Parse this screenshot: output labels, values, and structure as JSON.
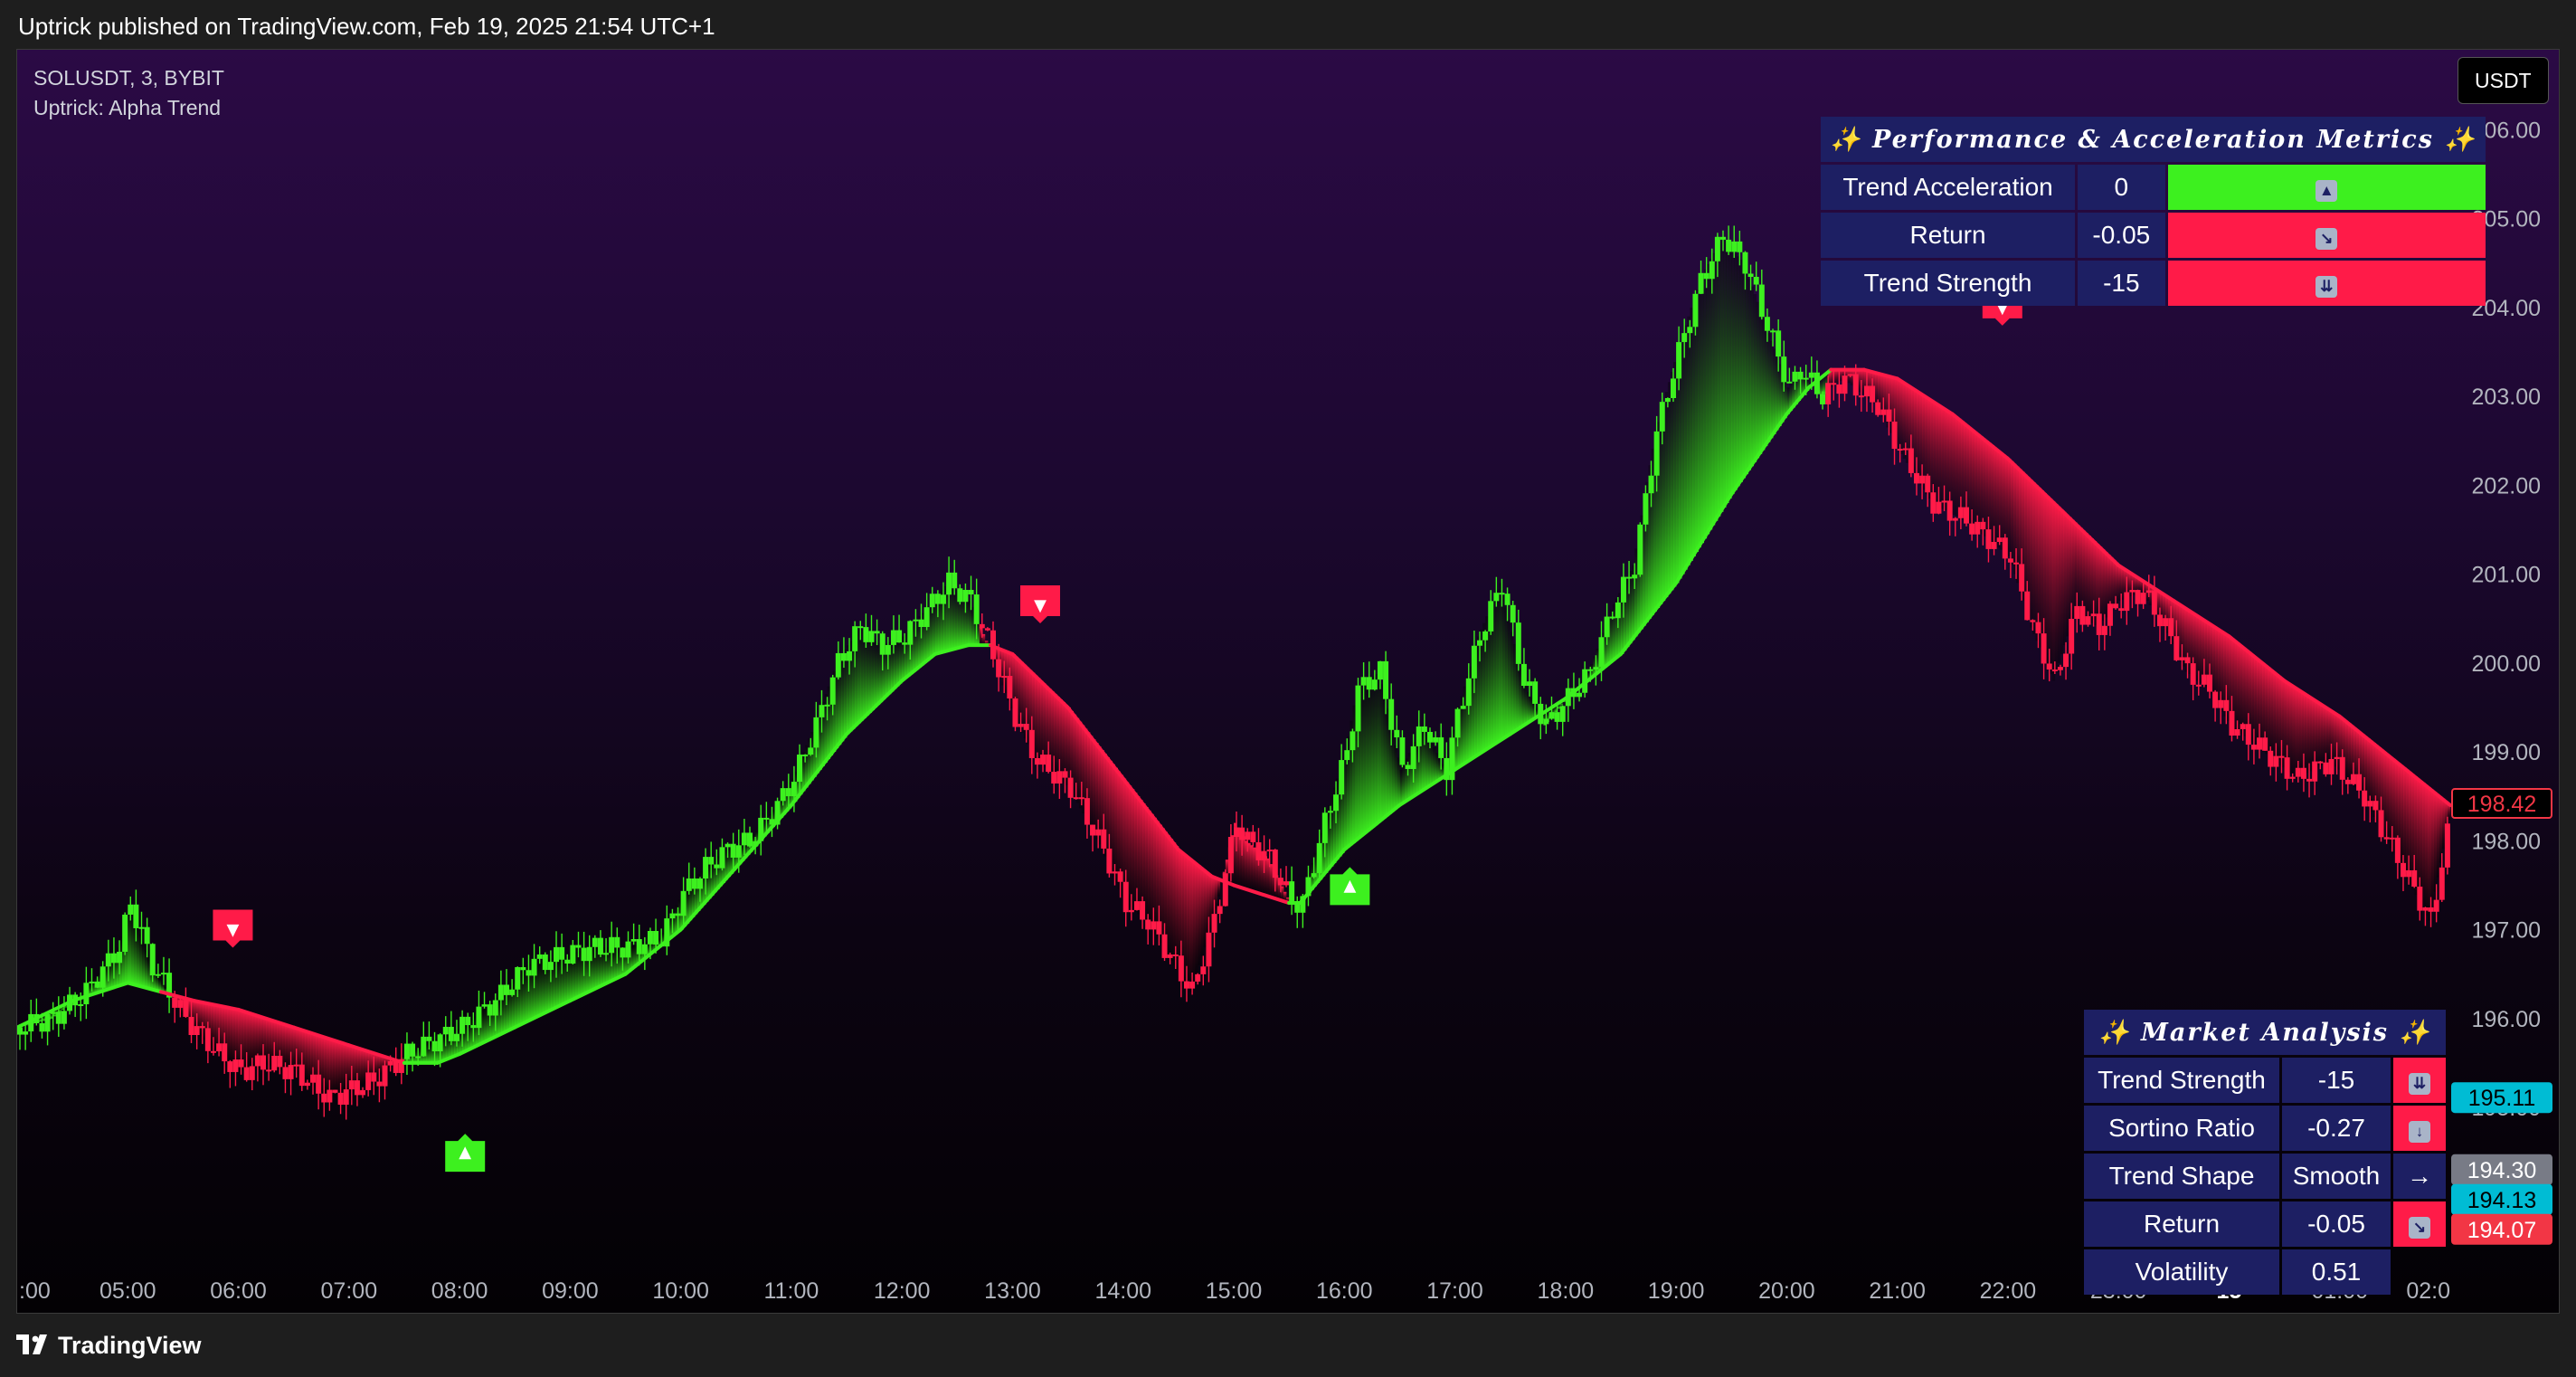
{
  "header": {
    "published_text": "Uptrick published on TradingView.com, Feb 19, 2025 21:54 UTC+1"
  },
  "legend": {
    "symbol": "SOLUSDT, 3, BYBIT",
    "indicator": "Uptrick: Alpha Trend"
  },
  "currency": "USDT",
  "footer": {
    "brand": "TradingView",
    "logo_icon": "tradingview-logo-icon"
  },
  "colors": {
    "bull": "#3df01f",
    "bear": "#ff1b48",
    "table_bg": "#1d1f63",
    "price_tag": "#f23645",
    "cyan_tag": "#00bcd4",
    "gray_tag": "#787b86"
  },
  "perf_table": {
    "title": "✨ Performance & Acceleration Metrics ✨",
    "rows": [
      {
        "label": "Trend Acceleration",
        "value": "0",
        "icon": "⬆️",
        "icon_name": "arrow-up-icon",
        "color": "green"
      },
      {
        "label": "Return",
        "value": "-0.05",
        "icon": "↘️",
        "icon_name": "arrow-down-right-icon",
        "color": "red"
      },
      {
        "label": "Trend Strength",
        "value": "-15",
        "icon": "⏬",
        "icon_name": "double-arrow-down-icon",
        "color": "red"
      }
    ]
  },
  "market_table": {
    "title": "✨ Market Analysis ✨",
    "rows": [
      {
        "label": "Trend Strength",
        "value": "-15",
        "icon": "⏬",
        "icon_name": "double-arrow-down-icon",
        "color": "red"
      },
      {
        "label": "Sortino Ratio",
        "value": "-0.27",
        "icon": "⬇️",
        "icon_name": "arrow-down-icon",
        "color": "red"
      },
      {
        "label": "Trend Shape",
        "value": "Smooth",
        "icon": "→",
        "icon_name": "arrow-right-icon",
        "color": "navy"
      },
      {
        "label": "Return",
        "value": "-0.05",
        "icon": "↘️",
        "icon_name": "arrow-down-right-icon",
        "color": "red"
      },
      {
        "label": "Volatility",
        "value": "0.51",
        "icon": "",
        "icon_name": "",
        "color": "none"
      }
    ]
  },
  "chart_data": {
    "type": "line",
    "title": "",
    "x_ticks": [
      ":00",
      "05:00",
      "06:00",
      "07:00",
      "08:00",
      "09:00",
      "10:00",
      "11:00",
      "12:00",
      "13:00",
      "14:00",
      "15:00",
      "16:00",
      "17:00",
      "18:00",
      "19:00",
      "20:00",
      "21:00",
      "22:00",
      "23:00",
      "15",
      "01:00",
      "02:0"
    ],
    "x_ticks_bold": [
      "15"
    ],
    "y_ticks": [
      "206.00",
      "205.00",
      "204.00",
      "203.00",
      "202.00",
      "201.00",
      "200.00",
      "199.00",
      "198.00",
      "197.00",
      "196.00",
      "195.00"
    ],
    "ylim": [
      193.3,
      206.9
    ],
    "grid": false,
    "x_range_hours": [
      4.0,
      26.0
    ],
    "series": [
      {
        "key": "price_close",
        "x": [
          4.0,
          4.3,
          4.6,
          4.9,
          5.0,
          5.2,
          5.5,
          5.8,
          6.0,
          6.2,
          6.5,
          6.8,
          7.0,
          7.2,
          7.5,
          8.0,
          8.3,
          8.6,
          8.9,
          9.2,
          9.5,
          9.8,
          10.0,
          10.2,
          10.4,
          10.6,
          10.8,
          11.0,
          11.2,
          11.4,
          11.6,
          11.8,
          12.0,
          12.2,
          12.4,
          12.6,
          12.8,
          13.0,
          13.2,
          13.5,
          13.8,
          14.0,
          14.2,
          14.4,
          14.6,
          14.8,
          15.0,
          15.1,
          15.3,
          15.5,
          15.6,
          15.8,
          16.0,
          16.1,
          16.3,
          16.5,
          16.7,
          16.9,
          17.0,
          17.2,
          17.4,
          17.6,
          17.8,
          18.0,
          18.2,
          18.4,
          18.6,
          18.8,
          19.0,
          19.2,
          19.4,
          19.6,
          19.8,
          20.0,
          20.1,
          20.3,
          20.5,
          20.8,
          21.0,
          21.3,
          21.6,
          22.0,
          22.2,
          22.4,
          22.6,
          22.8,
          23.0,
          23.2,
          23.4,
          23.6,
          23.8,
          24.0,
          24.3,
          24.6,
          24.9,
          25.2,
          25.5,
          25.8,
          26.0
        ],
        "y": [
          195.9,
          196.0,
          196.3,
          196.8,
          197.3,
          196.6,
          196.0,
          195.6,
          195.4,
          195.5,
          195.4,
          195.1,
          195.2,
          195.3,
          195.6,
          195.9,
          196.2,
          196.6,
          196.7,
          196.8,
          196.8,
          196.9,
          197.4,
          197.7,
          197.9,
          198.0,
          198.3,
          198.7,
          199.3,
          200.0,
          200.4,
          200.2,
          200.3,
          200.6,
          200.9,
          200.7,
          200.1,
          199.4,
          198.9,
          198.6,
          197.9,
          197.3,
          197.1,
          196.7,
          196.3,
          197.1,
          198.2,
          198.0,
          197.8,
          197.3,
          197.3,
          198.2,
          199.0,
          199.7,
          199.9,
          198.8,
          199.3,
          198.8,
          199.4,
          200.3,
          200.9,
          199.8,
          199.3,
          199.6,
          199.9,
          200.6,
          201.1,
          202.6,
          203.5,
          204.3,
          204.8,
          204.5,
          203.8,
          203.1,
          203.3,
          203.0,
          203.2,
          202.9,
          202.4,
          201.8,
          201.6,
          201.2,
          200.4,
          199.8,
          200.6,
          200.4,
          200.7,
          200.8,
          200.4,
          199.9,
          199.7,
          199.3,
          199.0,
          198.7,
          198.9,
          198.5,
          197.8,
          197.1,
          198.4
        ]
      },
      {
        "key": "alpha_trend",
        "x": [
          4.0,
          4.5,
          5.0,
          5.3,
          5.6,
          6.0,
          6.5,
          7.0,
          7.5,
          7.8,
          8.0,
          8.5,
          9.0,
          9.5,
          10.0,
          10.5,
          11.0,
          11.5,
          12.0,
          12.3,
          12.6,
          12.8,
          13.0,
          13.5,
          14.0,
          14.5,
          14.8,
          15.0,
          15.5,
          15.6,
          16.0,
          16.5,
          17.0,
          17.5,
          18.0,
          18.5,
          19.0,
          19.5,
          20.0,
          20.2,
          20.4,
          20.7,
          21.0,
          21.5,
          22.0,
          22.5,
          23.0,
          23.5,
          24.0,
          24.5,
          25.0,
          25.5,
          26.0
        ],
        "y": [
          195.9,
          196.2,
          196.4,
          196.3,
          196.2,
          196.1,
          195.9,
          195.7,
          195.5,
          195.5,
          195.6,
          195.9,
          196.2,
          196.5,
          197.0,
          197.7,
          198.4,
          199.2,
          199.8,
          200.1,
          200.2,
          200.2,
          200.1,
          199.5,
          198.7,
          197.9,
          197.6,
          197.5,
          197.3,
          197.3,
          197.9,
          198.4,
          198.8,
          199.2,
          199.6,
          200.1,
          200.9,
          201.9,
          202.8,
          203.1,
          203.3,
          203.3,
          203.2,
          202.8,
          202.3,
          201.7,
          201.1,
          200.7,
          200.3,
          199.8,
          199.4,
          198.9,
          198.4
        ]
      }
    ],
    "trend_regime": [
      {
        "from": 4.0,
        "to": 5.35,
        "direction": "bull"
      },
      {
        "from": 5.35,
        "to": 7.45,
        "direction": "bear"
      },
      {
        "from": 7.45,
        "to": 12.7,
        "direction": "bull"
      },
      {
        "from": 12.7,
        "to": 15.5,
        "direction": "bear"
      },
      {
        "from": 15.5,
        "to": 20.35,
        "direction": "bull"
      },
      {
        "from": 20.35,
        "to": 26.0,
        "direction": "bear"
      }
    ],
    "signals": [
      {
        "x": 5.95,
        "y": 197.0,
        "direction": "sell",
        "glyph": "▼",
        "icon_name": "sell-signal-icon"
      },
      {
        "x": 8.05,
        "y": 194.5,
        "direction": "buy",
        "glyph": "▲",
        "icon_name": "buy-signal-icon"
      },
      {
        "x": 13.25,
        "y": 200.65,
        "direction": "sell",
        "glyph": "▼",
        "icon_name": "sell-signal-icon"
      },
      {
        "x": 16.05,
        "y": 197.5,
        "direction": "buy",
        "glyph": "▲",
        "icon_name": "buy-signal-icon"
      },
      {
        "x": 21.95,
        "y": 204.0,
        "direction": "sell",
        "glyph": "▼",
        "icon_name": "sell-signal-icon"
      }
    ],
    "price_tags": [
      {
        "label": "198.42",
        "value": 198.42,
        "style": "outline-red"
      },
      {
        "label": "195.11",
        "value": 195.11,
        "style": "cyan"
      },
      {
        "label": "194.30",
        "value": 194.3,
        "style": "gray"
      },
      {
        "label": "194.13",
        "value": 194.13,
        "style": "cyan"
      },
      {
        "label": "194.07",
        "value": 194.07,
        "style": "red"
      }
    ]
  }
}
